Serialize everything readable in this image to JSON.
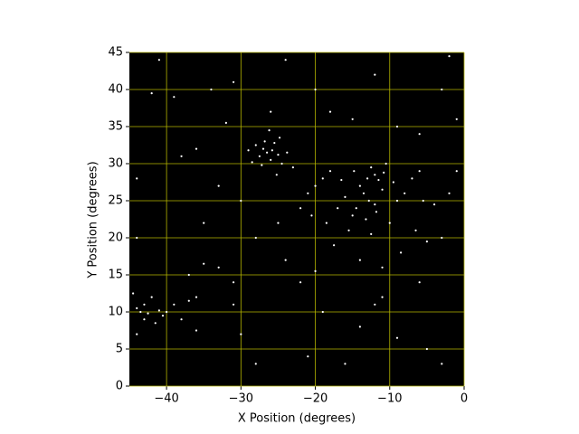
{
  "chart_data": {
    "type": "scatter",
    "xlabel": "X Position (degrees)",
    "ylabel": "Y Position (degrees)",
    "color": "#ffffff",
    "background": "#000000",
    "grid": true,
    "grid_color": "#b5b500",
    "xlim": [
      -45,
      0
    ],
    "ylim": [
      0,
      45
    ],
    "xticks": [
      {
        "value": -40,
        "label": "−40"
      },
      {
        "value": -30,
        "label": "−30"
      },
      {
        "value": -20,
        "label": "−20"
      },
      {
        "value": -10,
        "label": "−10"
      },
      0
    ],
    "yticks": [
      0,
      5,
      10,
      15,
      20,
      25,
      30,
      35,
      40,
      45
    ],
    "x": [
      -27,
      -26.5,
      -25.8,
      -26,
      -27.5,
      -25,
      -28,
      -24.5,
      -26.8,
      -25.5,
      -28.5,
      -23.8,
      -27.2,
      -24.8,
      -29,
      -26.2,
      -23,
      -25.2,
      -12,
      -11.5,
      -13,
      -12.5,
      -10.8,
      -14,
      -13.5,
      -11,
      -12.8,
      -14.5,
      -12,
      -15,
      -13.2,
      -11.8,
      -16,
      -10.5,
      -9.5,
      -14.8,
      -16.5,
      -17,
      -15.5,
      -12.5,
      -10,
      -9,
      -8,
      -7,
      -6,
      -5.5,
      -4,
      -6.5,
      -5,
      -3,
      -2,
      -1,
      -18,
      -19,
      -20,
      -21,
      -22,
      -20.5,
      -18.5,
      -17.5,
      -14,
      -11,
      -8.5,
      -44,
      -43.5,
      -43,
      -42.5,
      -41,
      -40.5,
      -42,
      -44.5,
      -41.5,
      -39,
      -38,
      -40,
      -43,
      -37,
      -36,
      -41,
      -39,
      -34,
      -32,
      -31,
      -36,
      -33,
      -30,
      -35,
      -37,
      -33,
      -31,
      -30,
      -28,
      -22,
      -20,
      -18,
      -15,
      -9,
      -6,
      -3,
      -2,
      -1,
      -44,
      -44,
      -44,
      -35,
      -28,
      -25,
      -24,
      -19,
      -14,
      -11,
      -9,
      -5,
      -3,
      -16,
      -6,
      -24,
      -12,
      -20,
      -26,
      -38,
      -42,
      -12,
      -21,
      -36,
      -31
    ],
    "y": [
      32,
      31.5,
      31.8,
      30.5,
      31,
      31.2,
      32.5,
      30,
      33,
      32.8,
      30.2,
      31.5,
      29.8,
      33.5,
      31.8,
      34.5,
      29.5,
      28.5,
      28.5,
      27.8,
      28,
      29.5,
      28.8,
      27,
      26,
      26.5,
      25,
      24,
      24.5,
      23,
      22.5,
      23.5,
      25.5,
      30,
      27.5,
      29,
      27.8,
      24,
      21,
      20.5,
      22,
      25,
      26,
      28,
      29,
      25,
      24.5,
      21,
      19.5,
      20,
      26,
      29,
      29,
      28,
      27,
      26,
      24,
      23,
      22,
      19,
      17,
      16,
      18,
      10.5,
      10,
      11,
      9.8,
      10.2,
      9.5,
      12,
      12.5,
      8.5,
      11,
      9,
      10,
      9,
      11.5,
      7.5,
      44,
      39,
      40,
      35.5,
      41,
      32,
      27,
      25,
      22,
      15,
      16,
      14,
      7,
      3,
      14,
      15.5,
      37,
      36,
      35,
      34,
      40,
      44.5,
      36,
      28,
      20,
      7,
      16.5,
      20,
      22,
      17,
      10,
      8,
      12,
      6.5,
      5,
      3,
      3,
      14,
      44,
      42,
      40,
      37,
      31,
      39.5,
      11,
      4,
      12,
      11
    ]
  }
}
